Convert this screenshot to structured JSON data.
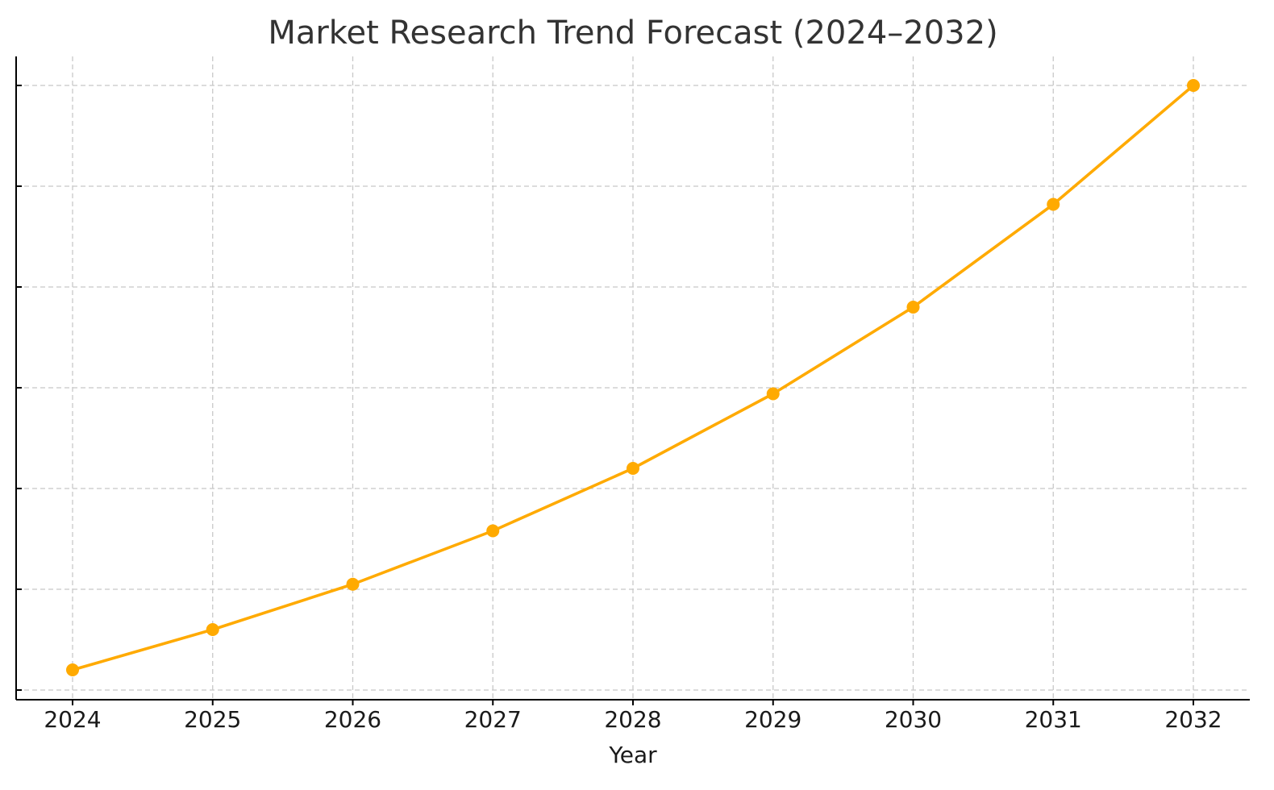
{
  "chart_data": {
    "type": "line",
    "title": "Market Research Trend Forecast (2024–2032)",
    "xlabel": "Year",
    "ylabel": "",
    "categories": [
      "2024",
      "2025",
      "2026",
      "2027",
      "2028",
      "2029",
      "2030",
      "2031",
      "2032"
    ],
    "series": [
      {
        "values": [
          0.2,
          0.6,
          1.05,
          1.58,
          2.2,
          2.94,
          3.8,
          4.82,
          6.0
        ],
        "color": "#FFAA00"
      }
    ],
    "ylim": [
      0,
      6
    ],
    "y_ticks": [
      0,
      1,
      2,
      3,
      4,
      5,
      6
    ],
    "y_tick_labels_visible": false,
    "grid": true,
    "legend": "none",
    "marker": "circle"
  }
}
